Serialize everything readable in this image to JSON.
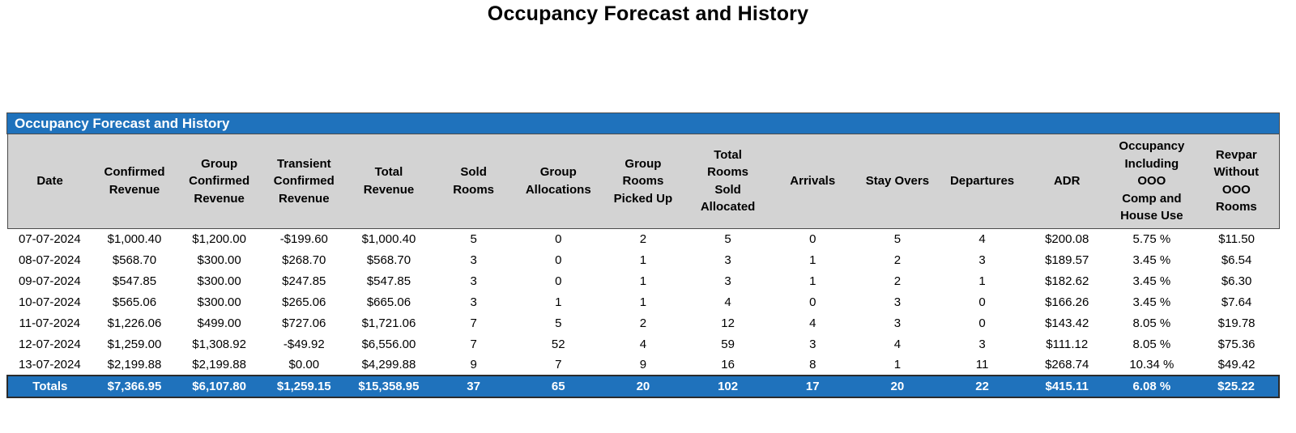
{
  "page_title": "Occupancy Forecast and History",
  "table": {
    "title": "Occupancy Forecast and History",
    "columns": [
      "Date",
      "Confirmed\nRevenue",
      "Group\nConfirmed\nRevenue",
      "Transient\nConfirmed\nRevenue",
      "Total\nRevenue",
      "Sold\nRooms",
      "Group\nAllocations",
      "Group\nRooms\nPicked Up",
      "Total\nRooms\nSold\nAllocated",
      "Arrivals",
      "Stay Overs",
      "Departures",
      "ADR",
      "Occupancy\nIncluding\nOOO\nComp and\nHouse Use",
      "Revpar\nWithout\nOOO\nRooms"
    ],
    "rows": [
      [
        "07-07-2024",
        "$1,000.40",
        "$1,200.00",
        "-$199.60",
        "$1,000.40",
        "5",
        "0",
        "2",
        "5",
        "0",
        "5",
        "4",
        "$200.08",
        "5.75 %",
        "$11.50"
      ],
      [
        "08-07-2024",
        "$568.70",
        "$300.00",
        "$268.70",
        "$568.70",
        "3",
        "0",
        "1",
        "3",
        "1",
        "2",
        "3",
        "$189.57",
        "3.45 %",
        "$6.54"
      ],
      [
        "09-07-2024",
        "$547.85",
        "$300.00",
        "$247.85",
        "$547.85",
        "3",
        "0",
        "1",
        "3",
        "1",
        "2",
        "1",
        "$182.62",
        "3.45 %",
        "$6.30"
      ],
      [
        "10-07-2024",
        "$565.06",
        "$300.00",
        "$265.06",
        "$665.06",
        "3",
        "1",
        "1",
        "4",
        "0",
        "3",
        "0",
        "$166.26",
        "3.45 %",
        "$7.64"
      ],
      [
        "11-07-2024",
        "$1,226.06",
        "$499.00",
        "$727.06",
        "$1,721.06",
        "7",
        "5",
        "2",
        "12",
        "4",
        "3",
        "0",
        "$143.42",
        "8.05 %",
        "$19.78"
      ],
      [
        "12-07-2024",
        "$1,259.00",
        "$1,308.92",
        "-$49.92",
        "$6,556.00",
        "7",
        "52",
        "4",
        "59",
        "3",
        "4",
        "3",
        "$111.12",
        "8.05 %",
        "$75.36"
      ],
      [
        "13-07-2024",
        "$2,199.88",
        "$2,199.88",
        "$0.00",
        "$4,299.88",
        "9",
        "7",
        "9",
        "16",
        "8",
        "1",
        "11",
        "$268.74",
        "10.34 %",
        "$49.42"
      ]
    ],
    "totals": [
      "Totals",
      "$7,366.95",
      "$6,107.80",
      "$1,259.15",
      "$15,358.95",
      "37",
      "65",
      "20",
      "102",
      "17",
      "20",
      "22",
      "$415.11",
      "6.08 %",
      "$25.22"
    ]
  },
  "colors": {
    "accent_blue": "#1F72BC",
    "header_gray": "#D3D3D3",
    "header_border": "#4A4A4A",
    "totals_border": "#2B2B2B"
  }
}
